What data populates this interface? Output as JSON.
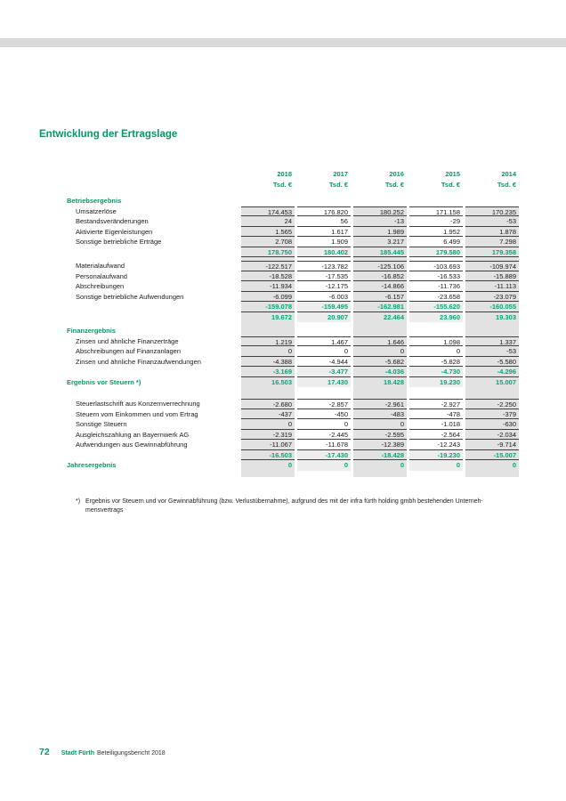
{
  "colors": {
    "accent": "#009a66",
    "sum_green": "#00a878",
    "shade": "#e2e2e2",
    "shade_light": "#ededed",
    "top_band": "#dadada"
  },
  "title": "Entwicklung der Ertragslage",
  "table": {
    "years": [
      "2018",
      "2017",
      "2016",
      "2015",
      "2014"
    ],
    "unit_label": "Tsd. €",
    "rows": [
      {
        "type": "section",
        "label": "Betriebsergebnis",
        "noshade": true
      },
      {
        "type": "item",
        "first": true,
        "label": "Umsatzerlöse",
        "values": [
          "174.453",
          "176.820",
          "180.252",
          "171.158",
          "170.235"
        ]
      },
      {
        "type": "item",
        "label": "Bestandsveränderungen",
        "values": [
          "24",
          "56",
          "-13",
          "-29",
          "-53"
        ]
      },
      {
        "type": "item",
        "label": "Aktivierte Eigenleistungen",
        "values": [
          "1.565",
          "1.617",
          "1.989",
          "1.952",
          "1.878"
        ]
      },
      {
        "type": "item",
        "label": "Sonstige betriebliche Erträge",
        "values": [
          "2.708",
          "1.909",
          "3.217",
          "6.499",
          "7.298"
        ]
      },
      {
        "type": "subtotal",
        "label": "",
        "values": [
          "178.750",
          "180.402",
          "185.445",
          "179.580",
          "179.358"
        ]
      },
      {
        "type": "gap"
      },
      {
        "type": "item",
        "first": true,
        "label": "Materialaufwand",
        "values": [
          "-122.517",
          "-123.782",
          "-125.106",
          "-103.693",
          "-109.974"
        ]
      },
      {
        "type": "item",
        "label": "Personalaufwand",
        "values": [
          "-18.528",
          "-17.535",
          "-16.852",
          "-16.533",
          "-15.889"
        ]
      },
      {
        "type": "item",
        "label": "Abschreibungen",
        "values": [
          "-11.934",
          "-12.175",
          "-14.866",
          "-11.736",
          "-11.113"
        ]
      },
      {
        "type": "item",
        "label": "Sonstige betriebliche Aufwendungen",
        "values": [
          "-6.099",
          "-6.003",
          "-6.157",
          "-23.658",
          "-23.079"
        ]
      },
      {
        "type": "subtotal",
        "label": "",
        "values": [
          "-159.078",
          "-159.495",
          "-162.981",
          "-155.620",
          "-160.055"
        ]
      },
      {
        "type": "total",
        "label": "",
        "values": [
          "19.672",
          "20.907",
          "22.464",
          "23.960",
          "19.303"
        ]
      },
      {
        "type": "gap"
      },
      {
        "type": "section",
        "label": "Finanzergebnis"
      },
      {
        "type": "item",
        "first": true,
        "label": "Zinsen und ähnliche Finanzerträge",
        "values": [
          "1.219",
          "1.467",
          "1.646",
          "1.098",
          "1.337"
        ]
      },
      {
        "type": "item",
        "label": "Abschreibungen auf Finanzanlagen",
        "values": [
          "0",
          "0",
          "0",
          "0",
          "-53"
        ]
      },
      {
        "type": "item",
        "label": "Zinsen und ähnliche Finanzaufwendungen",
        "values": [
          "-4.388",
          "-4.944",
          "-5.682",
          "-5.828",
          "-5.580"
        ]
      },
      {
        "type": "subtotal",
        "label": "",
        "values": [
          "-3.169",
          "-3.477",
          "-4.036",
          "-4.730",
          "-4.296"
        ]
      },
      {
        "type": "total",
        "label": "Ergebnis vor Steuern *)",
        "values": [
          "16.503",
          "17.430",
          "18.428",
          "19.230",
          "15.007"
        ]
      },
      {
        "type": "gap-tall"
      },
      {
        "type": "item",
        "first": true,
        "label": "Steuerlastschrift aus Konzernverrechnung",
        "values": [
          "-2.680",
          "-2.857",
          "-2.961",
          "-2.927",
          "-2.250"
        ]
      },
      {
        "type": "item",
        "label": "Steuern vom Einkommen und vom Ertrag",
        "values": [
          "-437",
          "-450",
          "-483",
          "-478",
          "-379"
        ]
      },
      {
        "type": "item",
        "label": "Sonstige Steuern",
        "values": [
          "0",
          "0",
          "0",
          "-1.018",
          "-630"
        ]
      },
      {
        "type": "item",
        "label": "Ausgleichszahlung an Bayernwerk AG",
        "values": [
          "-2.319",
          "-2.445",
          "-2.595",
          "-2.564",
          "-2.034"
        ]
      },
      {
        "type": "item",
        "label": "Aufwendungen aus Gewinnabführung",
        "values": [
          "-11.067",
          "-11.678",
          "-12.389",
          "-12.243",
          "-9.714"
        ]
      },
      {
        "type": "subtotal",
        "label": "",
        "values": [
          "-16.503",
          "-17.430",
          "-18.428",
          "-19.230",
          "-15.007"
        ]
      },
      {
        "type": "total",
        "label": "Jahresergebnis",
        "values": [
          "0",
          "0",
          "0",
          "0",
          "0"
        ]
      },
      {
        "type": "gap-end"
      }
    ]
  },
  "footnote": {
    "marker": "*)",
    "line1": "Ergebnis vor Steuern und vor Gewinnabführung (bzw. Verlustübernahme), aufgrund des mit der infra fürth holding gmbh bestehenden Unterneh-",
    "line2": "mensvertrags"
  },
  "footer": {
    "page_number": "72",
    "brand": "Stadt Fürth",
    "doc_title": "Beteiligungsbericht 2018"
  }
}
